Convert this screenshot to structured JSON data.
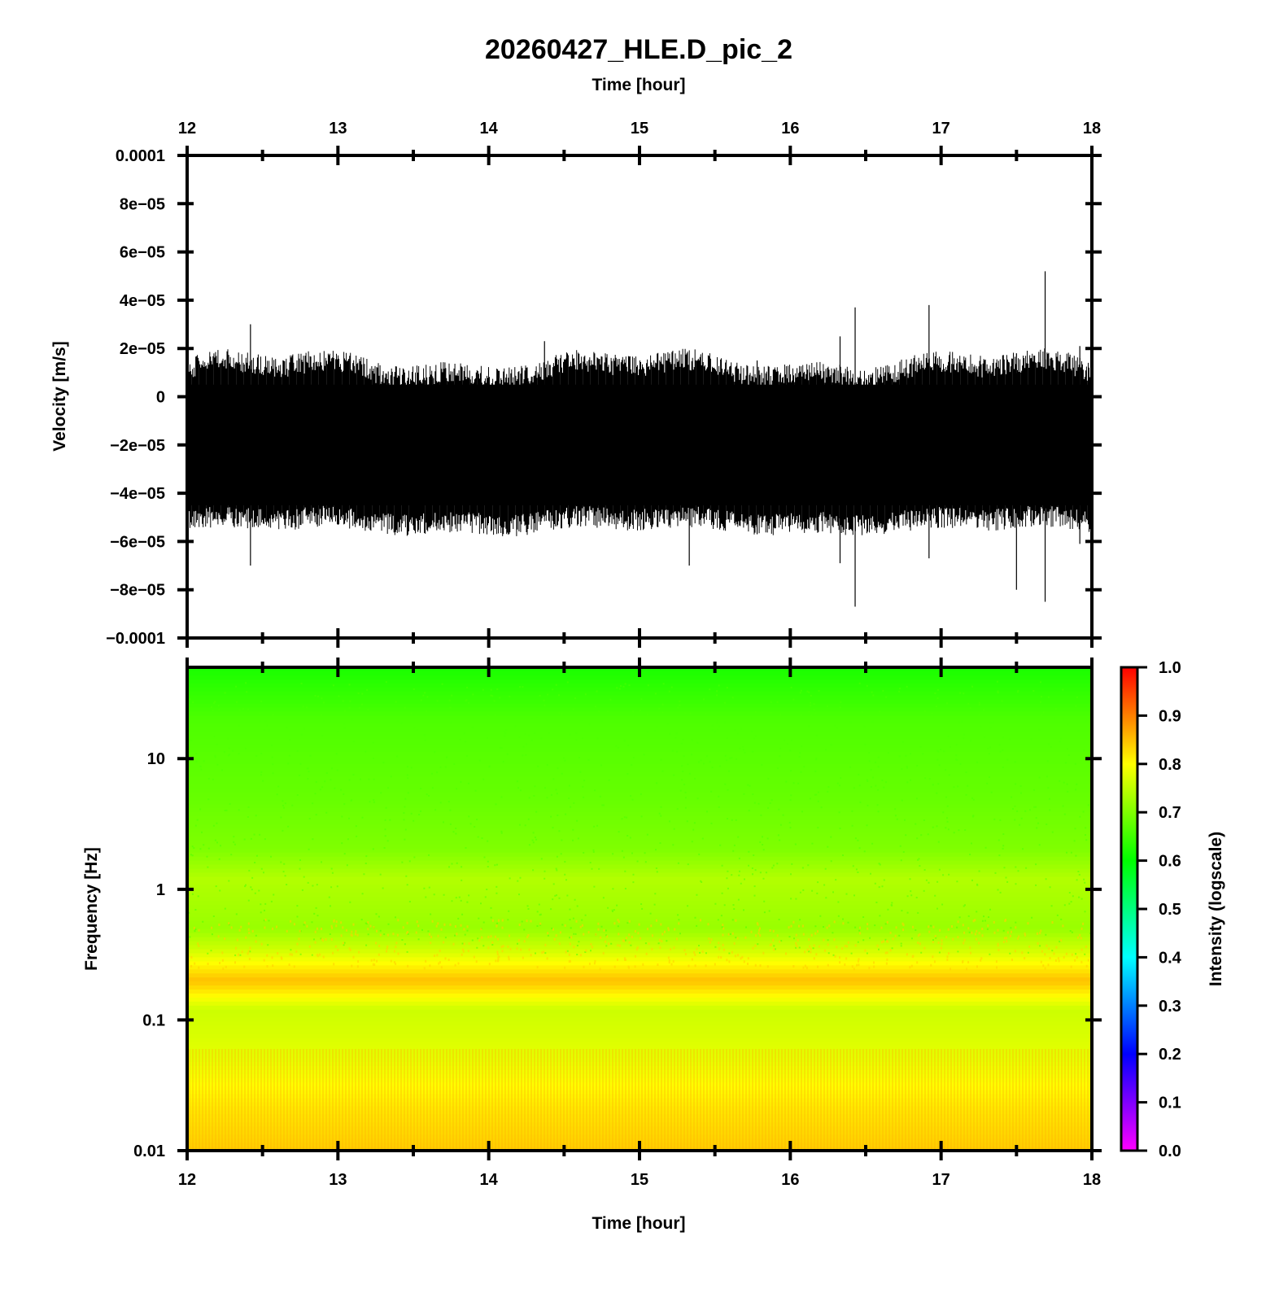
{
  "chart_data": [
    {
      "type": "line",
      "panel": "waveform",
      "title": "20260427_HLE.D_pic_2",
      "xlabel": "Time [hour]",
      "ylabel": "Velocity [m/s]",
      "xlim": [
        12,
        18
      ],
      "ylim": [
        -0.0001,
        0.0001
      ],
      "x_ticks": [
        "12",
        "13",
        "14",
        "15",
        "16",
        "17",
        "18"
      ],
      "y_ticks": [
        "0.0001",
        "8e−05",
        "6e−05",
        "4e−05",
        "2e−05",
        "0",
        "−2e−05",
        "−4e−05",
        "−6e−05",
        "−8e−05",
        "−0.0001"
      ],
      "y_tick_values": [
        0.0001,
        8e-05,
        6e-05,
        4e-05,
        2e-05,
        0,
        -2e-05,
        -4e-05,
        -6e-05,
        -8e-05,
        -0.0001
      ],
      "noise_band": {
        "upper": 5e-06,
        "lower": -4.5e-05,
        "center": -2e-05
      },
      "spikes": [
        {
          "x": 12.42,
          "max": 3e-05,
          "min": -7e-05
        },
        {
          "x": 13.53,
          "max": 1e-05,
          "min": -5.6e-05
        },
        {
          "x": 14.37,
          "max": 2.3e-05,
          "min": -4.5e-05
        },
        {
          "x": 15.33,
          "max": 5e-06,
          "min": -7e-05
        },
        {
          "x": 15.78,
          "max": 1.5e-05,
          "min": -5.7e-05
        },
        {
          "x": 16.33,
          "max": 2.5e-05,
          "min": -6.9e-05
        },
        {
          "x": 16.43,
          "max": 3.7e-05,
          "min": -8.7e-05
        },
        {
          "x": 16.92,
          "max": 3.8e-05,
          "min": -6.7e-05
        },
        {
          "x": 17.5,
          "max": 1.8e-05,
          "min": -8e-05
        },
        {
          "x": 17.69,
          "max": 5.2e-05,
          "min": -8.5e-05
        },
        {
          "x": 17.92,
          "max": 2.1e-05,
          "min": -6.1e-05
        }
      ]
    },
    {
      "type": "heatmap",
      "panel": "spectrogram",
      "xlabel": "Time [hour]",
      "ylabel": "Frequency [Hz]",
      "xlim": [
        12,
        18
      ],
      "ylim": [
        0.01,
        50
      ],
      "y_scale": "log",
      "x_ticks": [
        "12",
        "13",
        "14",
        "15",
        "16",
        "17",
        "18"
      ],
      "y_ticks": [
        "10",
        "1",
        "0.1",
        "0.01"
      ],
      "y_tick_values": [
        10,
        1,
        0.1,
        0.01
      ],
      "intensity_profile": [
        {
          "freq": 50,
          "value": 0.62
        },
        {
          "freq": 20,
          "value": 0.66
        },
        {
          "freq": 5,
          "value": 0.68
        },
        {
          "freq": 2,
          "value": 0.7
        },
        {
          "freq": 1.2,
          "value": 0.74
        },
        {
          "freq": 0.5,
          "value": 0.72
        },
        {
          "freq": 0.35,
          "value": 0.76
        },
        {
          "freq": 0.2,
          "value": 0.85
        },
        {
          "freq": 0.12,
          "value": 0.76
        },
        {
          "freq": 0.05,
          "value": 0.78
        },
        {
          "freq": 0.02,
          "value": 0.82
        },
        {
          "freq": 0.01,
          "value": 0.84
        }
      ],
      "colorbar": {
        "label": "Intensity (logscale)",
        "range": [
          0,
          1
        ],
        "ticks": [
          "1.0",
          "0.9",
          "0.8",
          "0.7",
          "0.6",
          "0.5",
          "0.4",
          "0.3",
          "0.2",
          "0.1",
          "0.0"
        ],
        "tick_values": [
          1.0,
          0.9,
          0.8,
          0.7,
          0.6,
          0.5,
          0.4,
          0.3,
          0.2,
          0.1,
          0.0
        ],
        "colors": [
          "#ff00ff",
          "#0000ff",
          "#00ffff",
          "#00ff00",
          "#ffff00",
          "#ff0000"
        ]
      }
    }
  ]
}
